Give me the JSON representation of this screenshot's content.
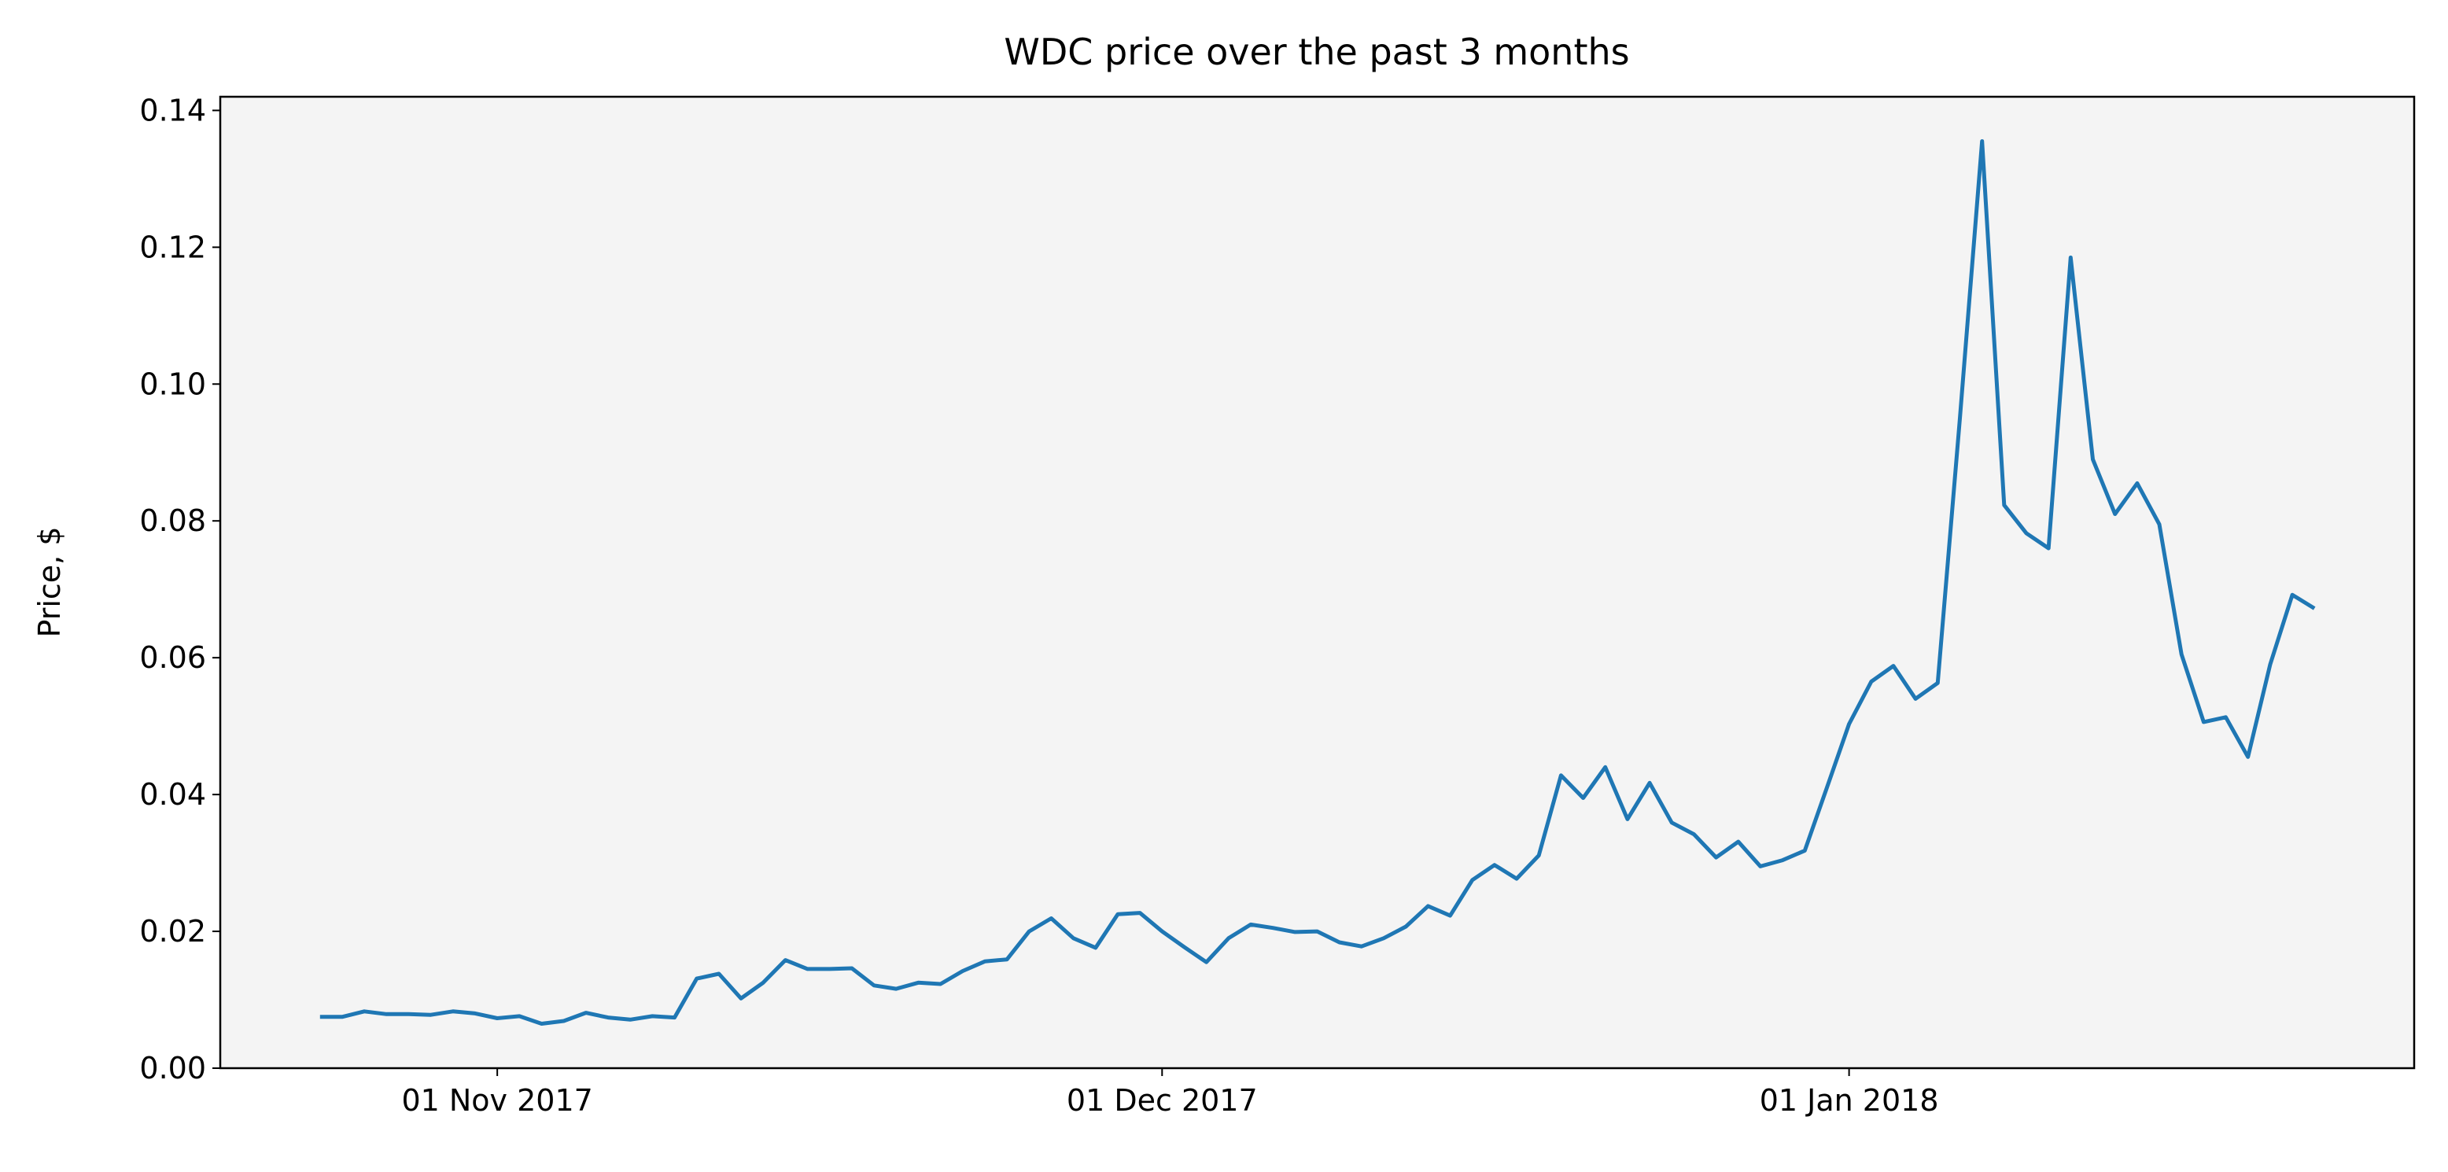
{
  "chart_data": {
    "type": "line",
    "title": "WDC price over the past 3 months",
    "y_label": "Price, $",
    "x": [
      "2017-10-24",
      "2017-10-25",
      "2017-10-26",
      "2017-10-27",
      "2017-10-28",
      "2017-10-29",
      "2017-10-30",
      "2017-10-31",
      "2017-11-01",
      "2017-11-02",
      "2017-11-03",
      "2017-11-04",
      "2017-11-05",
      "2017-11-06",
      "2017-11-07",
      "2017-11-08",
      "2017-11-09",
      "2017-11-10",
      "2017-11-11",
      "2017-11-12",
      "2017-11-13",
      "2017-11-14",
      "2017-11-15",
      "2017-11-16",
      "2017-11-17",
      "2017-11-18",
      "2017-11-19",
      "2017-11-20",
      "2017-11-21",
      "2017-11-22",
      "2017-11-23",
      "2017-11-24",
      "2017-11-25",
      "2017-11-26",
      "2017-11-27",
      "2017-11-28",
      "2017-11-29",
      "2017-11-30",
      "2017-12-01",
      "2017-12-02",
      "2017-12-03",
      "2017-12-04",
      "2017-12-05",
      "2017-12-06",
      "2017-12-07",
      "2017-12-08",
      "2017-12-09",
      "2017-12-10",
      "2017-12-11",
      "2017-12-12",
      "2017-12-13",
      "2017-12-14",
      "2017-12-15",
      "2017-12-16",
      "2017-12-17",
      "2017-12-18",
      "2017-12-19",
      "2017-12-20",
      "2017-12-21",
      "2017-12-22",
      "2017-12-23",
      "2017-12-24",
      "2017-12-25",
      "2017-12-26",
      "2017-12-27",
      "2017-12-28",
      "2017-12-29",
      "2017-12-30",
      "2017-12-31",
      "2018-01-01",
      "2018-01-02",
      "2018-01-03",
      "2018-01-04",
      "2018-01-05",
      "2018-01-06",
      "2018-01-07",
      "2018-01-08",
      "2018-01-09",
      "2018-01-10",
      "2018-01-11",
      "2018-01-12",
      "2018-01-13",
      "2018-01-14",
      "2018-01-15",
      "2018-01-16",
      "2018-01-17",
      "2018-01-18",
      "2018-01-19",
      "2018-01-20",
      "2018-01-21",
      "2018-01-22"
    ],
    "series": [
      {
        "name": "WDC",
        "color": "#1f77b4",
        "values": [
          0.0075,
          0.0075,
          0.0083,
          0.0079,
          0.0079,
          0.0078,
          0.0083,
          0.008,
          0.0073,
          0.0076,
          0.0065,
          0.0069,
          0.0081,
          0.0074,
          0.0071,
          0.0076,
          0.0074,
          0.0131,
          0.0138,
          0.0102,
          0.0125,
          0.0158,
          0.0145,
          0.0145,
          0.0146,
          0.0121,
          0.0116,
          0.0125,
          0.0123,
          0.0142,
          0.0156,
          0.0159,
          0.02,
          0.0219,
          0.019,
          0.0176,
          0.0225,
          0.0227,
          0.02,
          0.0177,
          0.0155,
          0.019,
          0.021,
          0.0205,
          0.0199,
          0.02,
          0.0184,
          0.0178,
          0.019,
          0.0207,
          0.0237,
          0.0223,
          0.0275,
          0.0297,
          0.0277,
          0.0311,
          0.0428,
          0.0395,
          0.044,
          0.0364,
          0.0417,
          0.0359,
          0.0342,
          0.0308,
          0.0331,
          0.0295,
          0.0304,
          0.0318,
          0.041,
          0.0503,
          0.0565,
          0.0588,
          0.054,
          0.0563,
          0.095,
          0.1355,
          0.0823,
          0.0782,
          0.076,
          0.1185,
          0.089,
          0.081,
          0.0855,
          0.0795,
          0.0605,
          0.0506,
          0.0513,
          0.0455,
          0.059,
          0.0692,
          0.0672
        ]
      }
    ],
    "xlim": [
      "2017-10-19T12:00Z",
      "2018-01-26T12:00Z"
    ],
    "xticks": [
      {
        "value": "2017-11-01",
        "label": "01 Nov 2017"
      },
      {
        "value": "2017-12-01",
        "label": "01 Dec 2017"
      },
      {
        "value": "2018-01-01",
        "label": "01 Jan 2018"
      }
    ],
    "ylim": [
      0,
      0.142
    ],
    "yticks": [
      {
        "value": 0,
        "label": "0.00"
      },
      {
        "value": 0.02,
        "label": "0.02"
      },
      {
        "value": 0.04,
        "label": "0.04"
      },
      {
        "value": 0.06,
        "label": "0.06"
      },
      {
        "value": 0.08,
        "label": "0.08"
      },
      {
        "value": 0.1,
        "label": "0.10"
      },
      {
        "value": 0.12,
        "label": "0.12"
      },
      {
        "value": 0.14,
        "label": "0.14"
      }
    ],
    "background": "#f4f4f4"
  }
}
